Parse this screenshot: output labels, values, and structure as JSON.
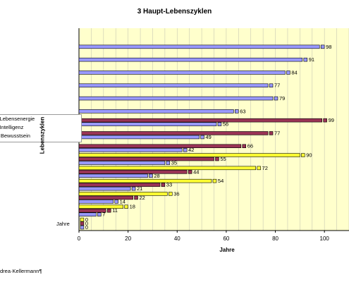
{
  "chart_data": {
    "type": "bar",
    "orientation": "horizontal",
    "title": "3 Haupt-Lebenszyklen",
    "xlabel": "Jahre",
    "ylabel": "Lebenszyklen",
    "xlim": [
      0,
      110
    ],
    "x_ticks": [
      "0",
      "20",
      "40",
      "60",
      "80",
      "100"
    ],
    "grid": "vertical",
    "category_labels": [
      "Jahre"
    ],
    "legend_entries": [
      "r Lebensenergie",
      "r Intelligenz",
      "s Bewusstsein"
    ],
    "legend_position": "left",
    "series_colors": [
      "#ffff33",
      "#993355",
      "#9999ff"
    ],
    "groups": [
      [
        0,
        0,
        0
      ],
      [
        18,
        11,
        7
      ],
      [
        36,
        22,
        14
      ],
      [
        54,
        33,
        21
      ],
      [
        72,
        44,
        28
      ],
      [
        90,
        55,
        35
      ],
      [
        null,
        66,
        42
      ],
      [
        null,
        77,
        49
      ],
      [
        null,
        99,
        56
      ],
      [
        null,
        null,
        63
      ],
      [
        null,
        null,
        79
      ],
      [
        null,
        null,
        77
      ],
      [
        null,
        null,
        84
      ],
      [
        null,
        null,
        91
      ],
      [
        null,
        null,
        98
      ]
    ]
  },
  "footer": "drea·Kellermann¶",
  "colors": {
    "plot_bg": "#ffffcc",
    "axis": "#000000",
    "grid": "#c8c8b4"
  }
}
